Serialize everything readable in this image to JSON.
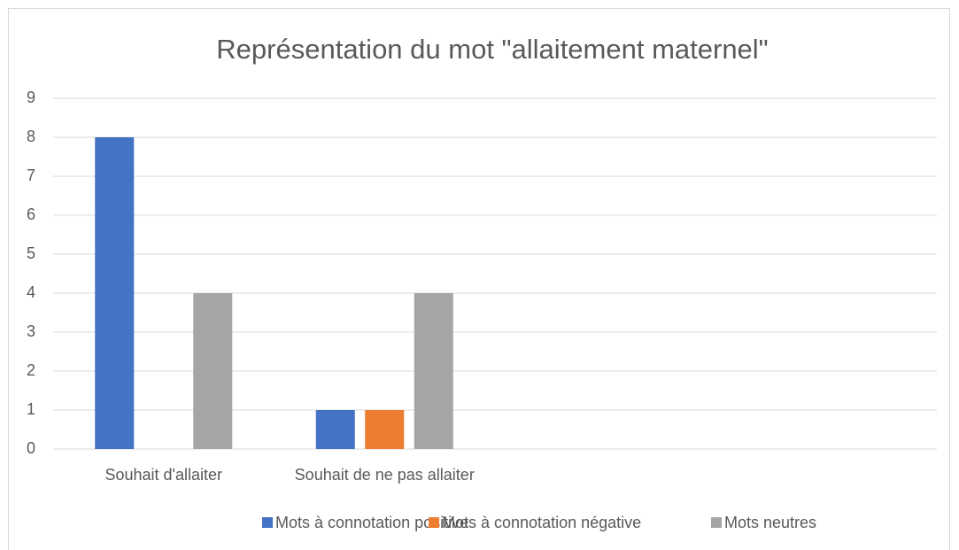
{
  "chart_data": {
    "type": "bar",
    "title": "Représentation du mot \"allaitement maternel\"",
    "categories": [
      "Souhait d'allaiter",
      "Souhait de ne pas allaiter",
      null,
      null
    ],
    "series": [
      {
        "name": "Mots à connotation positive",
        "color": "#4472c4",
        "values": [
          8,
          1,
          null,
          null
        ]
      },
      {
        "name": "Mots à connotation négative",
        "color": "#ed7d31",
        "values": [
          0,
          1,
          null,
          null
        ]
      },
      {
        "name": "Mots neutres",
        "color": "#a5a5a5",
        "values": [
          4,
          4,
          null,
          null
        ]
      }
    ],
    "ylim": [
      0,
      9
    ],
    "yticks": [
      0,
      1,
      2,
      3,
      4,
      5,
      6,
      7,
      8,
      9
    ],
    "grid": true,
    "legend": "bottom"
  }
}
